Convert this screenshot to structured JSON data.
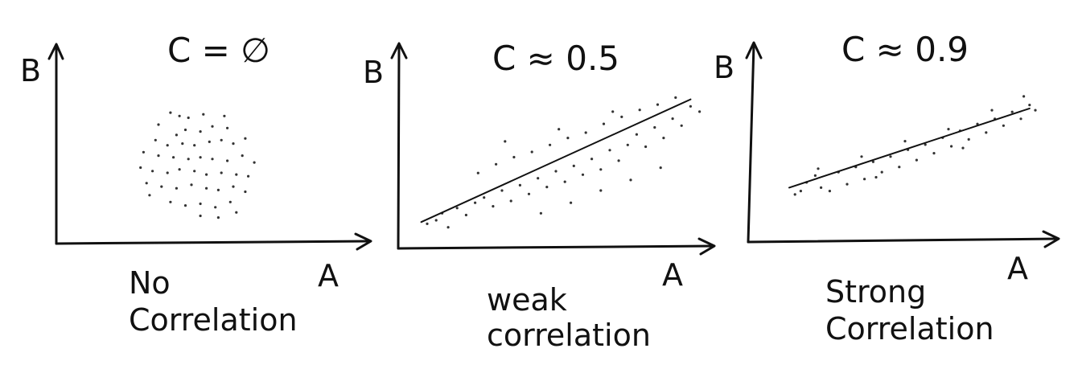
{
  "chart_data": [
    {
      "type": "scatter",
      "title": "C = ∅",
      "ylabel": "B",
      "xlabel": "A",
      "caption": [
        "No",
        "Correlation"
      ],
      "trend_line": null,
      "points": [
        [
          3.6,
          7.1
        ],
        [
          3.9,
          6.9
        ],
        [
          4.2,
          6.8
        ],
        [
          4.7,
          7.0
        ],
        [
          5.4,
          6.9
        ],
        [
          5.0,
          6.3
        ],
        [
          5.5,
          6.2
        ],
        [
          4.1,
          6.1
        ],
        [
          4.6,
          6.0
        ],
        [
          3.8,
          5.8
        ],
        [
          3.1,
          5.5
        ],
        [
          3.5,
          5.2
        ],
        [
          4.0,
          5.3
        ],
        [
          4.4,
          5.2
        ],
        [
          4.9,
          5.4
        ],
        [
          5.3,
          5.5
        ],
        [
          5.7,
          5.3
        ],
        [
          6.1,
          5.6
        ],
        [
          2.7,
          4.8
        ],
        [
          3.2,
          4.6
        ],
        [
          3.7,
          4.5
        ],
        [
          4.2,
          4.4
        ],
        [
          4.6,
          4.5
        ],
        [
          5.0,
          4.4
        ],
        [
          5.5,
          4.3
        ],
        [
          6.0,
          4.6
        ],
        [
          6.4,
          4.2
        ],
        [
          2.6,
          3.9
        ],
        [
          3.0,
          3.7
        ],
        [
          3.5,
          3.6
        ],
        [
          3.9,
          3.8
        ],
        [
          4.4,
          3.7
        ],
        [
          4.8,
          3.5
        ],
        [
          5.3,
          3.6
        ],
        [
          5.8,
          3.5
        ],
        [
          6.2,
          3.4
        ],
        [
          2.8,
          3.0
        ],
        [
          3.3,
          2.8
        ],
        [
          3.8,
          2.7
        ],
        [
          4.3,
          2.9
        ],
        [
          4.8,
          2.7
        ],
        [
          5.2,
          2.6
        ],
        [
          5.7,
          2.8
        ],
        [
          6.1,
          2.5
        ],
        [
          3.6,
          1.9
        ],
        [
          4.1,
          1.7
        ],
        [
          4.6,
          1.8
        ],
        [
          5.1,
          1.6
        ],
        [
          5.6,
          1.9
        ],
        [
          4.6,
          1.1
        ],
        [
          5.2,
          1.0
        ],
        [
          5.8,
          1.3
        ],
        [
          2.9,
          2.3
        ],
        [
          3.2,
          6.4
        ]
      ]
    },
    {
      "type": "scatter",
      "title": "C ≈ 0.5",
      "ylabel": "B",
      "xlabel": "A",
      "caption": [
        "weak",
        "correlation"
      ],
      "trend_line": [
        [
          0.5,
          1.0
        ],
        [
          9.5,
          8.0
        ]
      ],
      "points": [
        [
          0.7,
          0.9
        ],
        [
          1.0,
          1.1
        ],
        [
          1.4,
          0.7
        ],
        [
          1.2,
          1.5
        ],
        [
          1.7,
          1.8
        ],
        [
          2.0,
          1.4
        ],
        [
          2.3,
          2.1
        ],
        [
          2.6,
          2.4
        ],
        [
          2.9,
          1.9
        ],
        [
          3.2,
          2.8
        ],
        [
          3.5,
          2.2
        ],
        [
          3.8,
          3.1
        ],
        [
          4.1,
          2.6
        ],
        [
          4.4,
          3.5
        ],
        [
          4.7,
          3.0
        ],
        [
          5.0,
          3.9
        ],
        [
          5.3,
          3.3
        ],
        [
          5.6,
          4.2
        ],
        [
          5.9,
          3.7
        ],
        [
          6.2,
          4.6
        ],
        [
          6.5,
          4.0
        ],
        [
          6.8,
          5.1
        ],
        [
          7.1,
          4.5
        ],
        [
          7.4,
          5.4
        ],
        [
          7.7,
          6.0
        ],
        [
          8.0,
          5.3
        ],
        [
          8.3,
          6.4
        ],
        [
          8.6,
          5.8
        ],
        [
          8.9,
          6.9
        ],
        [
          9.2,
          6.5
        ],
        [
          9.5,
          7.6
        ],
        [
          9.8,
          7.3
        ],
        [
          2.4,
          3.8
        ],
        [
          3.0,
          4.3
        ],
        [
          3.6,
          4.7
        ],
        [
          4.2,
          5.0
        ],
        [
          4.8,
          5.4
        ],
        [
          5.4,
          5.8
        ],
        [
          6.0,
          6.1
        ],
        [
          6.6,
          6.6
        ],
        [
          7.2,
          7.0
        ],
        [
          7.8,
          7.4
        ],
        [
          8.4,
          7.7
        ],
        [
          9.0,
          8.1
        ],
        [
          4.5,
          1.5
        ],
        [
          5.5,
          2.1
        ],
        [
          6.5,
          2.8
        ],
        [
          7.5,
          3.4
        ],
        [
          8.5,
          4.1
        ],
        [
          3.3,
          5.6
        ],
        [
          5.1,
          6.3
        ],
        [
          6.9,
          7.3
        ]
      ]
    },
    {
      "type": "scatter",
      "title": "C ≈ 0.9",
      "ylabel": "B",
      "xlabel": "A",
      "caption": [
        "Strong",
        "Correlation"
      ],
      "trend_line": [
        [
          1.0,
          2.6
        ],
        [
          9.3,
          7.2
        ]
      ],
      "points": [
        [
          1.2,
          2.2
        ],
        [
          1.6,
          2.9
        ],
        [
          1.9,
          3.3
        ],
        [
          2.1,
          2.6
        ],
        [
          2.4,
          2.4
        ],
        [
          2.7,
          3.5
        ],
        [
          3.0,
          2.8
        ],
        [
          3.3,
          3.8
        ],
        [
          3.6,
          3.1
        ],
        [
          3.9,
          4.1
        ],
        [
          4.2,
          3.5
        ],
        [
          4.5,
          4.4
        ],
        [
          4.8,
          3.8
        ],
        [
          5.1,
          4.8
        ],
        [
          5.4,
          4.2
        ],
        [
          5.7,
          5.1
        ],
        [
          6.0,
          4.6
        ],
        [
          6.3,
          5.5
        ],
        [
          6.6,
          5.0
        ],
        [
          6.9,
          5.9
        ],
        [
          7.2,
          5.4
        ],
        [
          7.5,
          6.3
        ],
        [
          7.8,
          5.8
        ],
        [
          8.1,
          6.6
        ],
        [
          8.4,
          6.2
        ],
        [
          8.7,
          7.0
        ],
        [
          9.0,
          6.6
        ],
        [
          9.3,
          7.4
        ],
        [
          9.5,
          7.1
        ],
        [
          9.1,
          7.9
        ],
        [
          2.0,
          3.7
        ],
        [
          3.5,
          4.4
        ],
        [
          5.0,
          5.3
        ],
        [
          6.5,
          6.0
        ],
        [
          8.0,
          7.1
        ],
        [
          4.0,
          3.2
        ],
        [
          7.0,
          4.9
        ],
        [
          1.4,
          2.4
        ]
      ]
    }
  ]
}
